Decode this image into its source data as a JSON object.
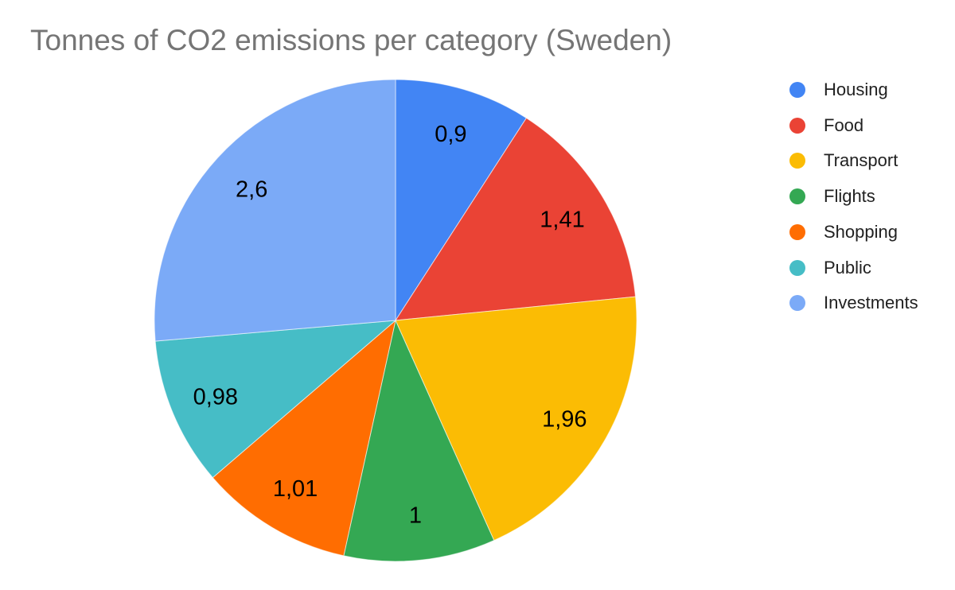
{
  "chart_data": {
    "type": "pie",
    "title": "Tonnes of CO2 emissions per category (Sweden)",
    "title_color": "#757575",
    "categories": [
      "Housing",
      "Food",
      "Transport",
      "Flights",
      "Shopping",
      "Public",
      "Investments"
    ],
    "values": [
      0.9,
      1.41,
      1.96,
      1,
      1.01,
      0.98,
      2.6
    ],
    "value_labels": [
      "0,9",
      "1,41",
      "1,96",
      "1",
      "1,01",
      "0,98",
      "2,6"
    ],
    "colors": [
      "#4285F4",
      "#EA4335",
      "#FBBC04",
      "#34A853",
      "#FF6D01",
      "#46BDC6",
      "#7BAAF7"
    ],
    "slice_label_color": "#000000",
    "legend_position": "right",
    "legend_text_color": "#212121",
    "start_angle_deg": 0,
    "direction": "clockwise",
    "background": "#ffffff"
  }
}
